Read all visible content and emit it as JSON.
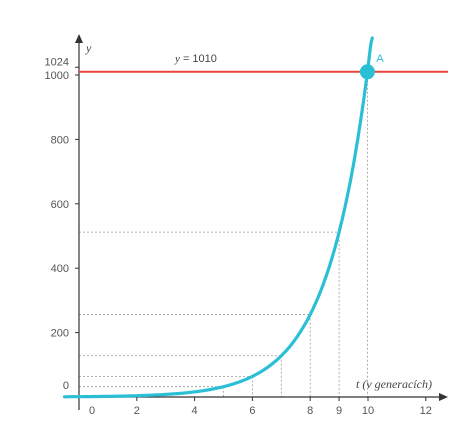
{
  "chart_data": {
    "type": "line",
    "xlabel": "t (v generacích)",
    "ylabel": "y",
    "xlim": [
      -0.5,
      13
    ],
    "ylim": [
      -40,
      1110
    ],
    "x_ticks": [
      0,
      2,
      4,
      6,
      8,
      9,
      10,
      12
    ],
    "x_tick_labels": [
      "0",
      "2",
      "4",
      "6",
      "8",
      "9",
      "10",
      "12"
    ],
    "y_ticks": [
      0,
      200,
      400,
      600,
      800,
      1000
    ],
    "y_tick_labels": [
      "0",
      "200",
      "400",
      "600",
      "800",
      "1000"
    ],
    "y_extra_tick": {
      "value": 1024,
      "label": "1024"
    },
    "series": [
      {
        "function": "y = 2^t",
        "color": "#2bbfd6",
        "x": [
          0,
          1,
          2,
          3,
          4,
          5,
          6,
          7,
          8,
          9,
          10
        ],
        "y": [
          1,
          2,
          4,
          8,
          16,
          32,
          64,
          128,
          256,
          512,
          1024
        ]
      }
    ],
    "hline": {
      "label_prefix": "y",
      "label_rest": " = 1010",
      "y": 1010,
      "color": "#e8453c"
    },
    "guides": [
      {
        "x": 5,
        "y": 32
      },
      {
        "x": 6,
        "y": 64
      },
      {
        "x": 7,
        "y": 128
      },
      {
        "x": 8,
        "y": 256
      },
      {
        "x": 9,
        "y": 512
      }
    ],
    "point": {
      "label": "A",
      "x": 9.98,
      "y": 1010,
      "color": "#2bbfd6"
    },
    "grid": false
  }
}
